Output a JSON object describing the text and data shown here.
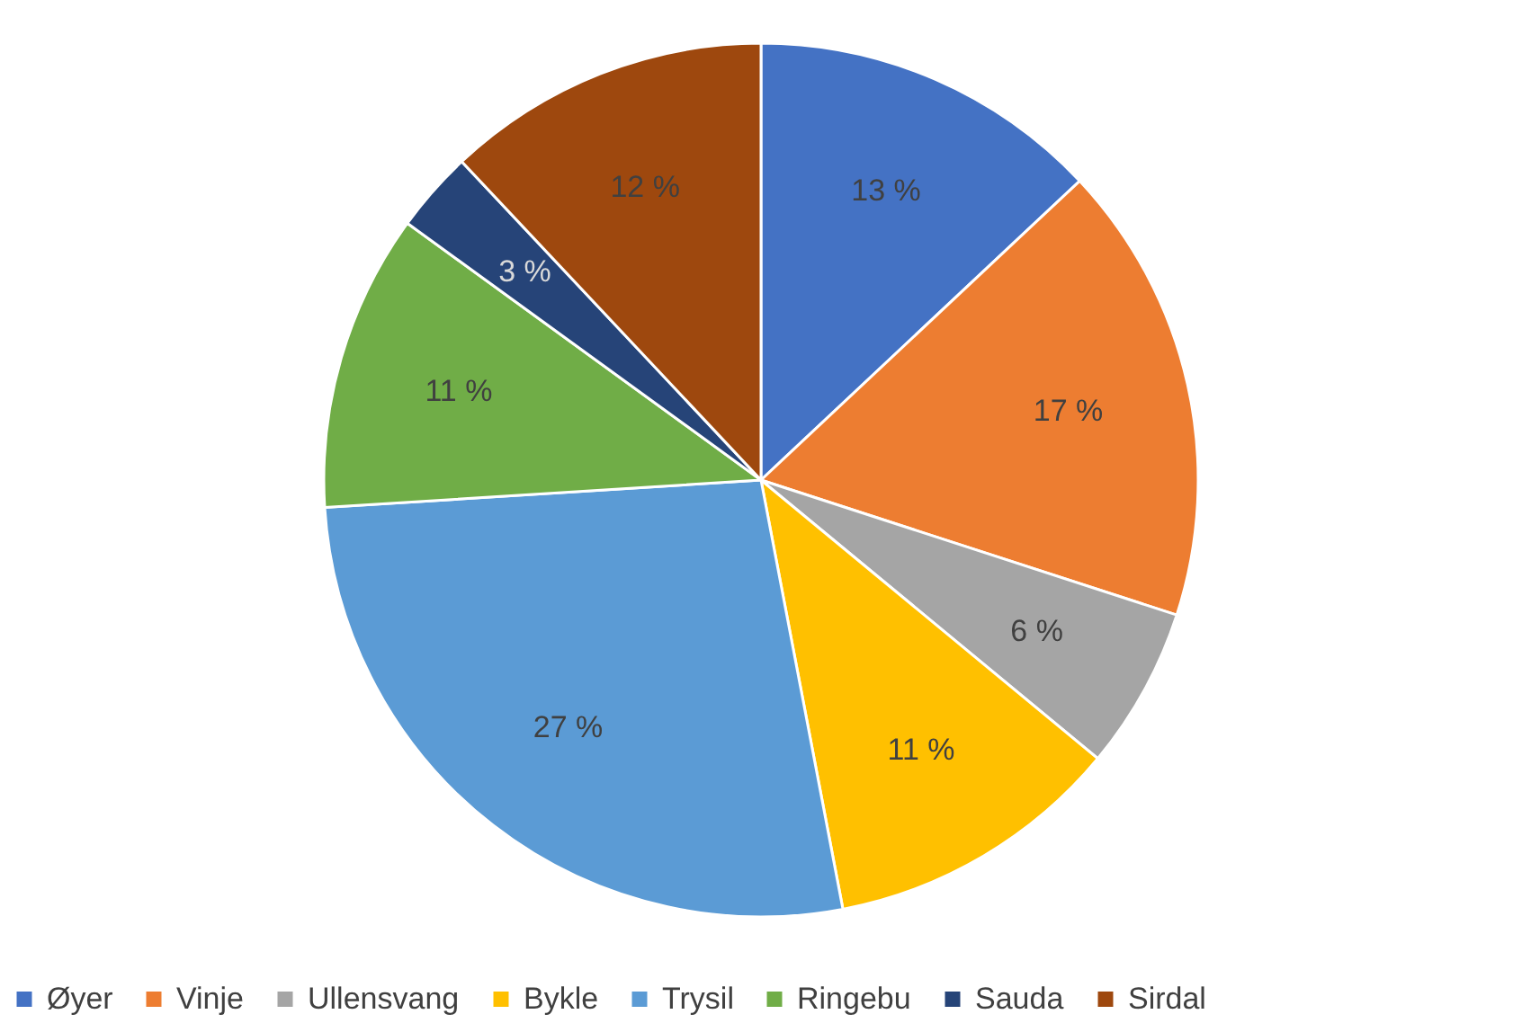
{
  "chart_data": {
    "type": "pie",
    "categories": [
      "Øyer",
      "Vinje",
      "Ullensvang",
      "Bykle",
      "Trysil",
      "Ringebu",
      "Sauda",
      "Sirdal"
    ],
    "values": [
      13,
      17,
      6,
      11,
      27,
      11,
      3,
      12
    ],
    "colors": [
      "#4472c4",
      "#ed7d31",
      "#a5a5a5",
      "#ffc000",
      "#5b9bd5",
      "#70ad47",
      "#264478",
      "#9e480e"
    ],
    "value_labels": [
      "13 %",
      "17 %",
      "6 %",
      "11 %",
      "27 %",
      "11 %",
      "3 %",
      "12 %"
    ],
    "legend": "bottom"
  }
}
